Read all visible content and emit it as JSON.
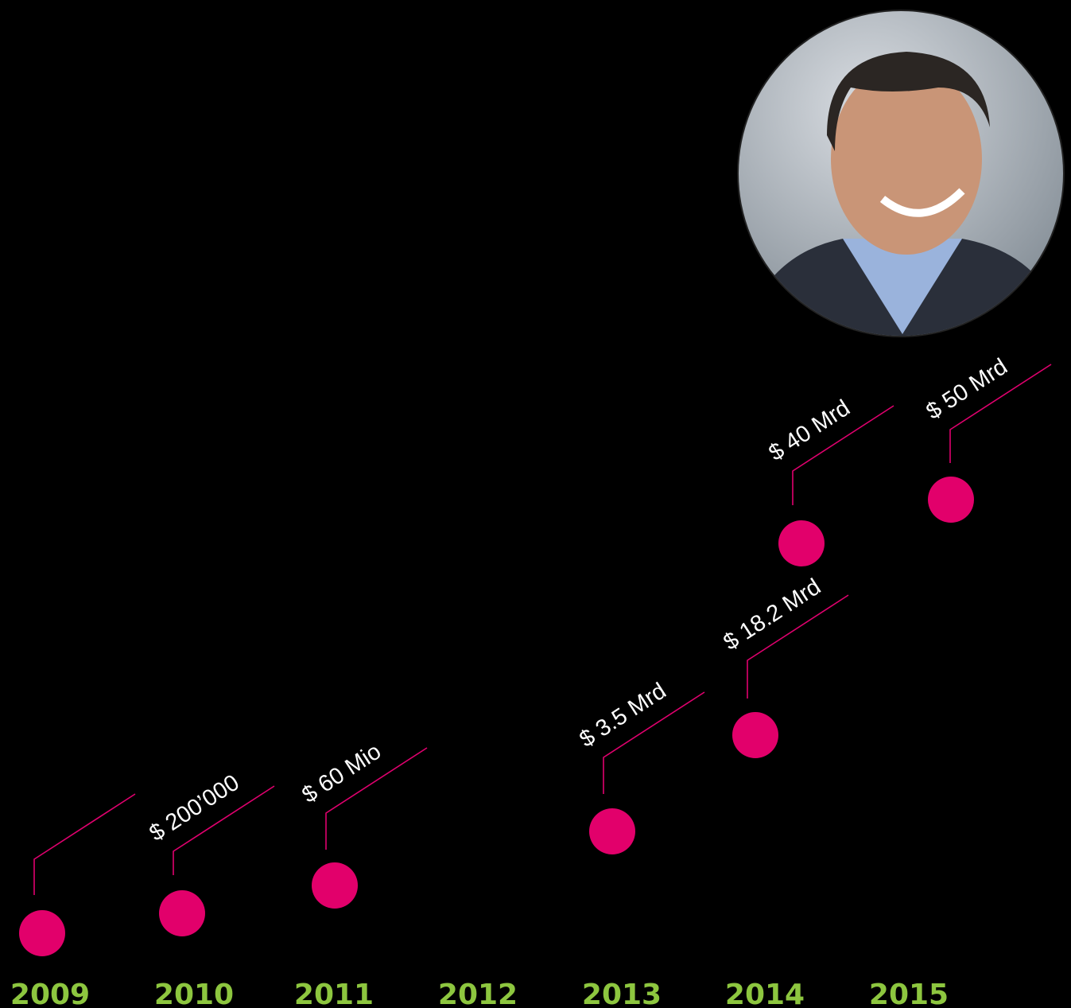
{
  "years": [
    "2009",
    "2010",
    "2011",
    "2012",
    "2013",
    "2014",
    "2015"
  ],
  "milestones": [
    {
      "label": "$ 200’000"
    },
    {
      "label": "$ 60 Mio"
    },
    {
      "label": "$ 3.5 Mrd"
    },
    {
      "label": "$ 18.2 Mrd"
    },
    {
      "label": "$ 40 Mrd"
    },
    {
      "label": "$ 50 Mrd"
    }
  ]
}
